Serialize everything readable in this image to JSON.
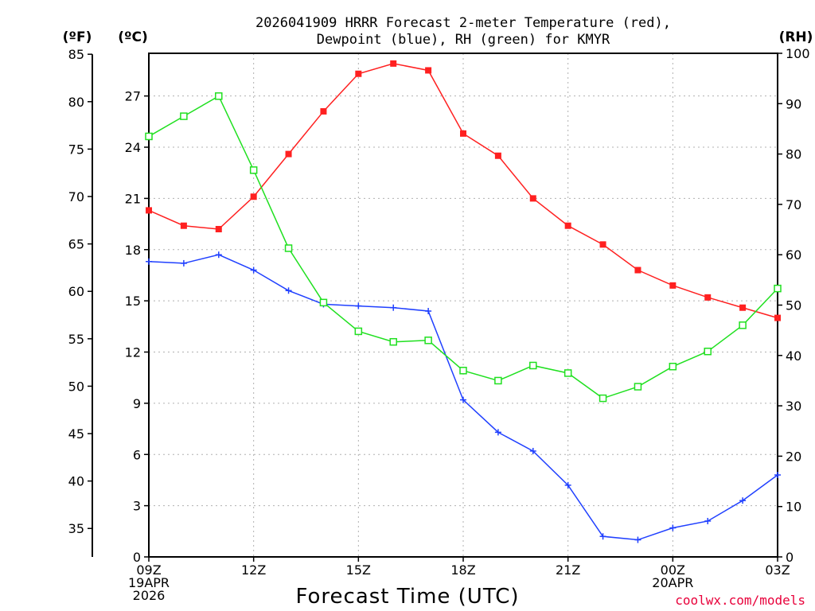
{
  "chart_data": {
    "type": "line",
    "title_lines": [
      "2026041909 HRRR Forecast 2-meter Temperature (red),",
      "Dewpoint (blue), RH (green) for KMYR"
    ],
    "xlabel": "Forecast Time (UTC)",
    "credit": "coolwx.com/models",
    "x": [
      0,
      1,
      2,
      3,
      4,
      5,
      6,
      7,
      8,
      9,
      10,
      11,
      12,
      13,
      14,
      15,
      16,
      17,
      18
    ],
    "xlim": [
      0,
      18
    ],
    "x_ticks": [
      {
        "x": 0,
        "lines": [
          "09Z",
          "19APR",
          "2026"
        ]
      },
      {
        "x": 3,
        "lines": [
          "12Z"
        ]
      },
      {
        "x": 6,
        "lines": [
          "15Z"
        ]
      },
      {
        "x": 9,
        "lines": [
          "18Z"
        ]
      },
      {
        "x": 12,
        "lines": [
          "21Z"
        ]
      },
      {
        "x": 15,
        "lines": [
          "00Z",
          "20APR"
        ]
      },
      {
        "x": 18,
        "lines": [
          "03Z"
        ]
      }
    ],
    "axes": {
      "fahrenheit": {
        "unit_label": "(ºF)",
        "ticks": [
          "35",
          "40",
          "45",
          "50",
          "55",
          "60",
          "65",
          "70",
          "75",
          "80",
          "85"
        ]
      },
      "celsius": {
        "unit_label": "(ºC)",
        "ylim": [
          0,
          29.5
        ],
        "ticks": [
          "0",
          "3",
          "6",
          "9",
          "12",
          "15",
          "18",
          "21",
          "24",
          "27"
        ]
      },
      "rh": {
        "unit_label": "(RH)",
        "ylim": [
          0,
          100
        ],
        "ticks": [
          "0",
          "10",
          "20",
          "30",
          "40",
          "50",
          "60",
          "70",
          "80",
          "90",
          "100"
        ]
      }
    },
    "grid": true,
    "series": [
      {
        "name": "Temperature",
        "units": "C",
        "axis": "celsius",
        "color": "#ff2020",
        "marker": "filled-square",
        "values": [
          20.3,
          19.4,
          19.2,
          21.1,
          23.6,
          26.1,
          28.3,
          28.9,
          28.5,
          24.8,
          23.5,
          21.0,
          19.4,
          18.3,
          16.8,
          15.9,
          15.2,
          14.6,
          14.0
        ]
      },
      {
        "name": "Dewpoint",
        "units": "C",
        "axis": "celsius",
        "color": "#2040ff",
        "marker": "plus",
        "values": [
          17.3,
          17.2,
          17.7,
          16.8,
          15.6,
          14.8,
          14.7,
          14.6,
          14.4,
          9.2,
          7.3,
          6.2,
          4.2,
          1.2,
          1.0,
          1.7,
          2.1,
          3.3,
          4.8
        ]
      },
      {
        "name": "RH",
        "units": "%",
        "axis": "rh",
        "color": "#20e020",
        "marker": "open-square",
        "values": [
          83.5,
          87.5,
          91.5,
          76.8,
          61.3,
          50.5,
          44.8,
          42.7,
          43.0,
          37.0,
          35.0,
          38.0,
          36.5,
          31.5,
          33.8,
          37.8,
          40.8,
          46.0,
          53.3
        ]
      }
    ]
  }
}
